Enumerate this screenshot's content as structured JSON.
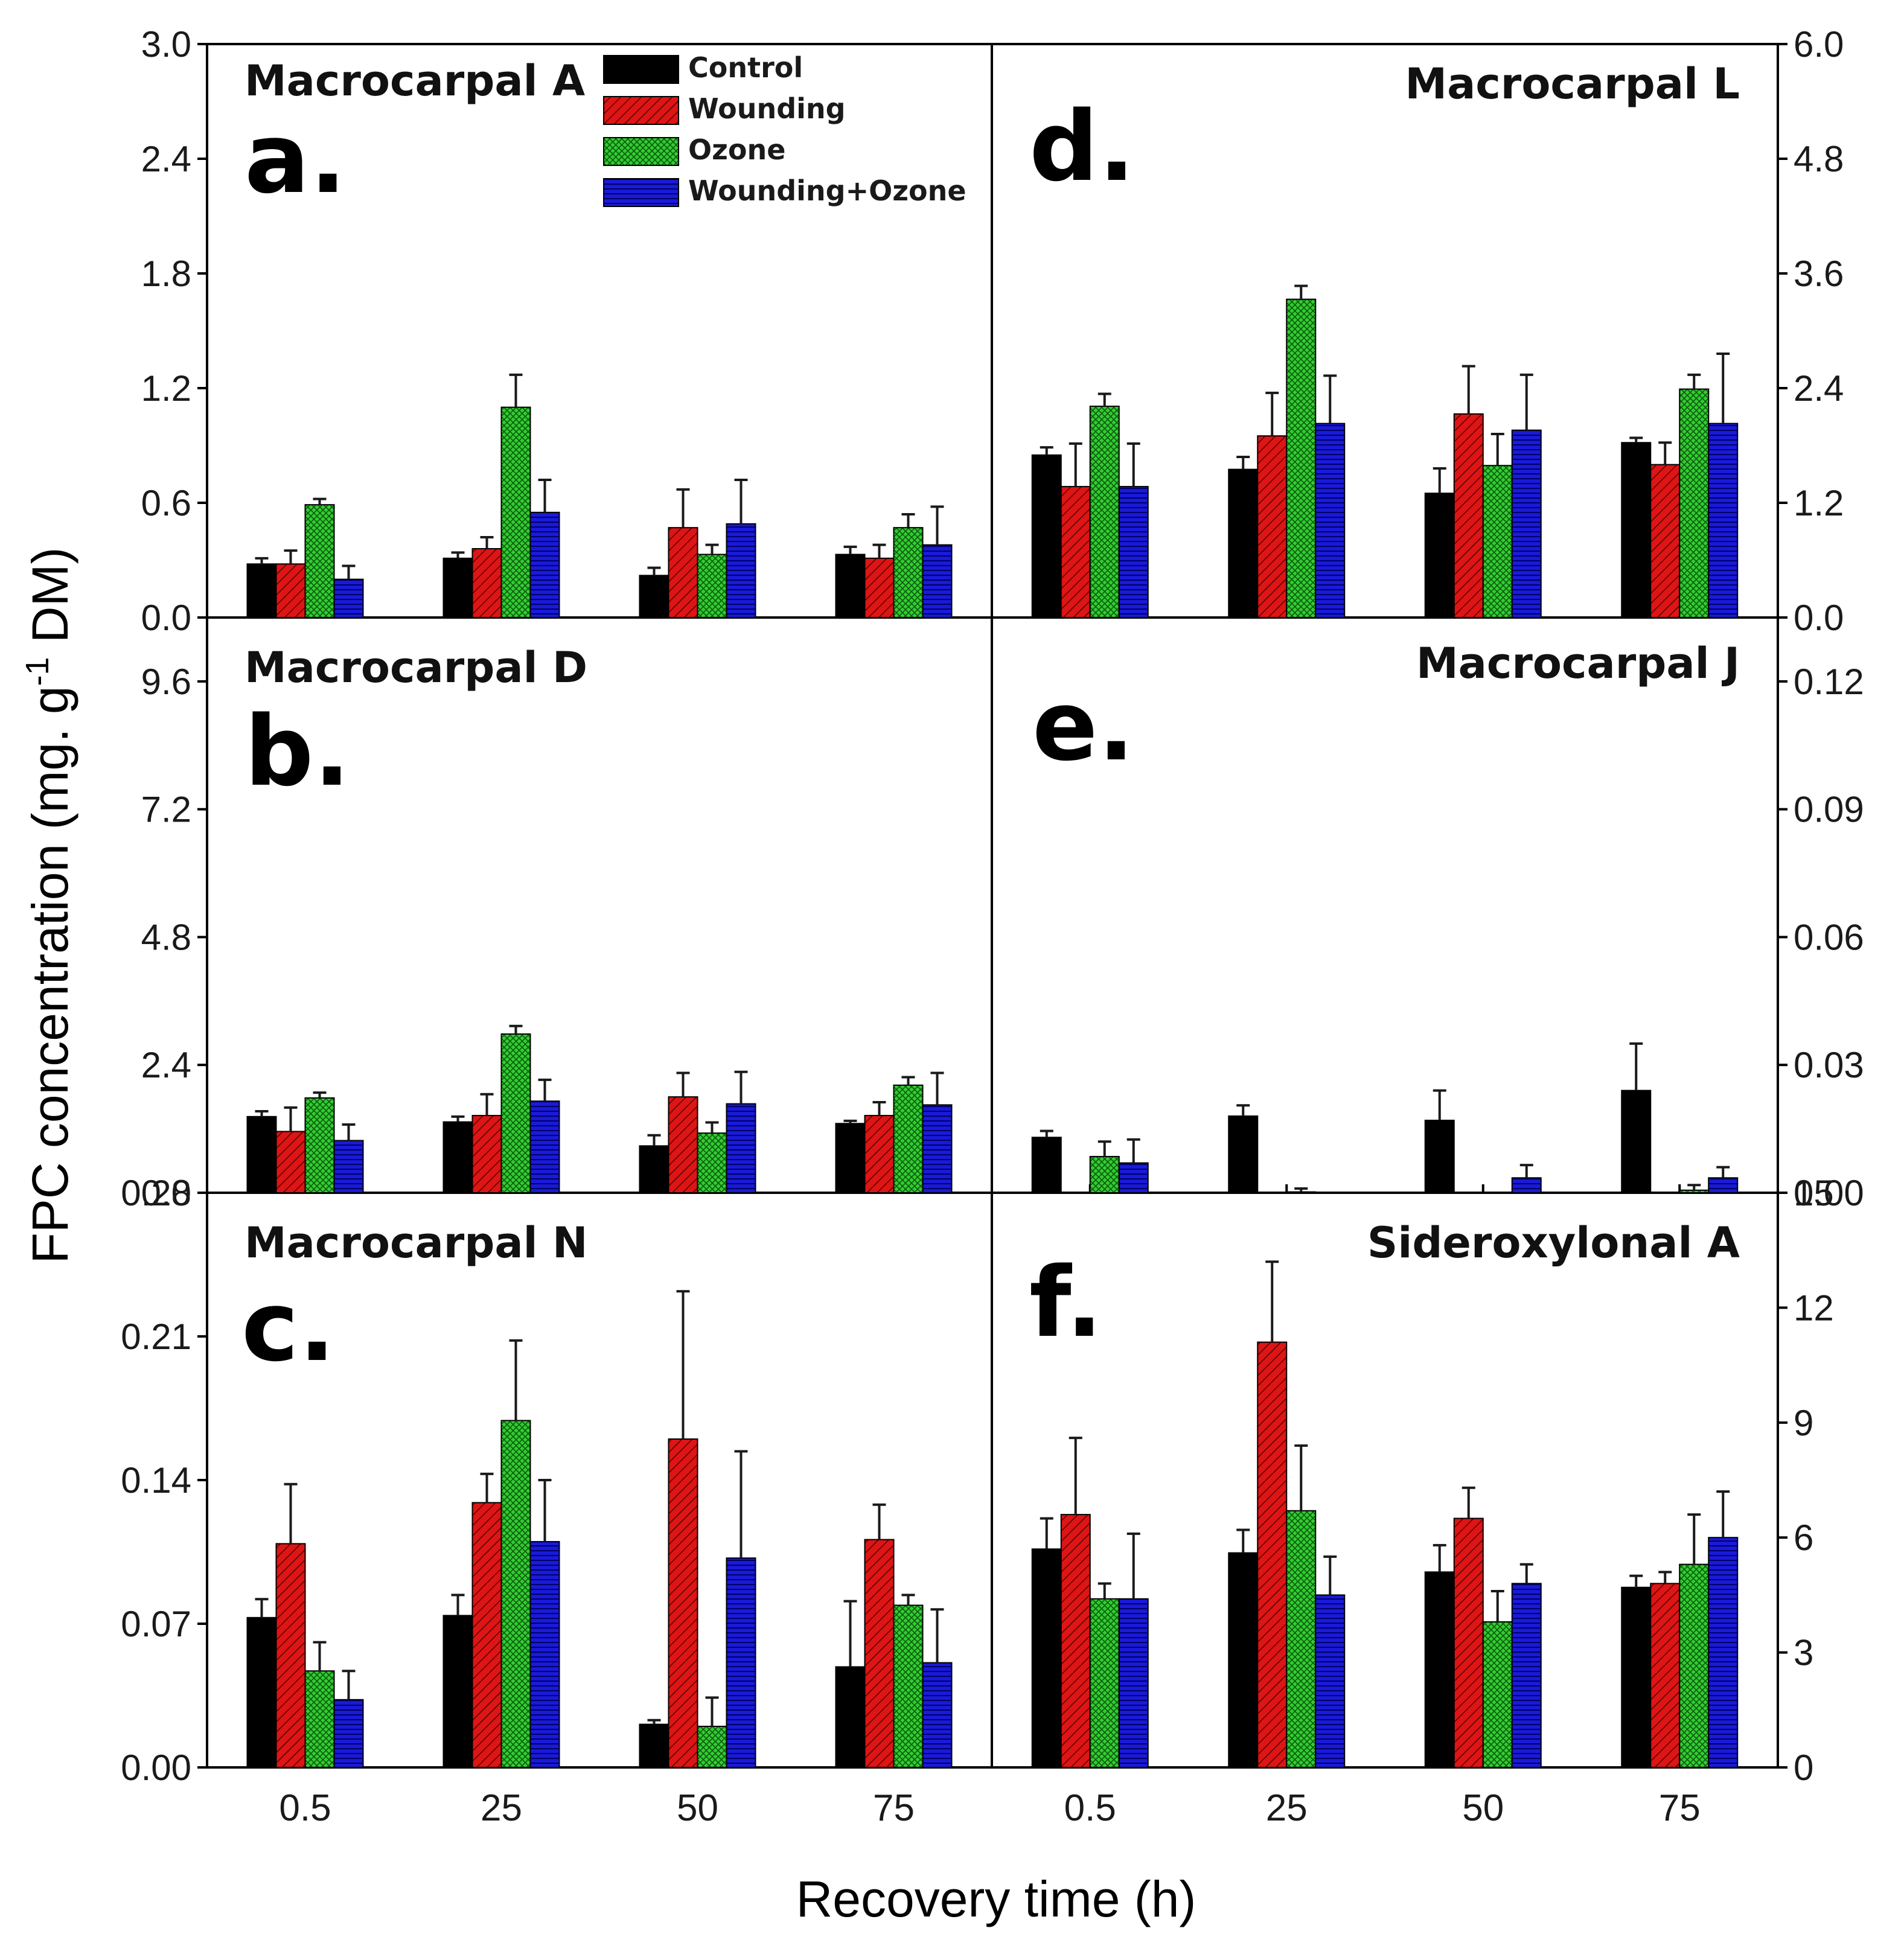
{
  "figure": {
    "ylabel": "FPC concentration (mg. g",
    "ylabel_sup": "-1",
    "ylabel_end": " DM)",
    "xlabel": "Recovery time (h)"
  },
  "colors": {
    "Control": "#000000",
    "Wounding": "#dd1515",
    "Ozone": "#33cc33",
    "Wounding+Ozone": "#1a1ad9"
  },
  "chart_data": [
    {
      "type": "bar",
      "panel": "a.",
      "title": "Macrocarpal A",
      "categories": [
        "0.5",
        "25",
        "50",
        "75"
      ],
      "ylim": [
        0,
        3.0
      ],
      "yticks": [
        "0.0",
        "0.6",
        "1.2",
        "1.8",
        "2.4",
        "3.0"
      ],
      "series": [
        {
          "name": "Control",
          "values": [
            0.28,
            0.31,
            0.22,
            0.33
          ],
          "errors": [
            0.03,
            0.03,
            0.04,
            0.04
          ]
        },
        {
          "name": "Wounding",
          "values": [
            0.28,
            0.36,
            0.47,
            0.31
          ],
          "errors": [
            0.07,
            0.06,
            0.2,
            0.07
          ]
        },
        {
          "name": "Ozone",
          "values": [
            0.59,
            1.1,
            0.33,
            0.47
          ],
          "errors": [
            0.03,
            0.17,
            0.05,
            0.07
          ]
        },
        {
          "name": "Wounding+Ozone",
          "values": [
            0.2,
            0.55,
            0.49,
            0.38
          ],
          "errors": [
            0.07,
            0.17,
            0.23,
            0.2
          ]
        }
      ]
    },
    {
      "type": "bar",
      "panel": "b.",
      "title": "Macrocarpal D",
      "categories": [
        "0.5",
        "25",
        "50",
        "75"
      ],
      "ylim": [
        0,
        10.8
      ],
      "yticks": [
        "0.0",
        "2.4",
        "4.8",
        "7.2",
        "9.6"
      ],
      "series": [
        {
          "name": "Control",
          "values": [
            1.43,
            1.33,
            0.88,
            1.3
          ],
          "errors": [
            0.1,
            0.1,
            0.2,
            0.05
          ]
        },
        {
          "name": "Wounding",
          "values": [
            1.15,
            1.45,
            1.8,
            1.45
          ],
          "errors": [
            0.45,
            0.4,
            0.45,
            0.25
          ]
        },
        {
          "name": "Ozone",
          "values": [
            1.78,
            2.98,
            1.12,
            2.02
          ],
          "errors": [
            0.1,
            0.15,
            0.2,
            0.15
          ]
        },
        {
          "name": "Wounding+Ozone",
          "values": [
            0.98,
            1.72,
            1.67,
            1.65
          ],
          "errors": [
            0.3,
            0.4,
            0.6,
            0.6
          ]
        }
      ]
    },
    {
      "type": "bar",
      "panel": "c.",
      "title": "Macrocarpal N",
      "categories": [
        "0.5",
        "25",
        "50",
        "75"
      ],
      "ylim": [
        0,
        0.28
      ],
      "yticks": [
        "0.00",
        "0.07",
        "0.14",
        "0.21",
        "0.28"
      ],
      "series": [
        {
          "name": "Control",
          "values": [
            0.073,
            0.074,
            0.021,
            0.049
          ],
          "errors": [
            0.009,
            0.01,
            0.002,
            0.032
          ]
        },
        {
          "name": "Wounding",
          "values": [
            0.109,
            0.129,
            0.16,
            0.111
          ],
          "errors": [
            0.029,
            0.014,
            0.072,
            0.017
          ]
        },
        {
          "name": "Ozone",
          "values": [
            0.047,
            0.169,
            0.02,
            0.079
          ],
          "errors": [
            0.014,
            0.039,
            0.014,
            0.005
          ]
        },
        {
          "name": "Wounding+Ozone",
          "values": [
            0.033,
            0.11,
            0.102,
            0.051
          ],
          "errors": [
            0.014,
            0.03,
            0.052,
            0.026
          ]
        }
      ]
    },
    {
      "type": "bar",
      "panel": "d.",
      "title": "Macrocarpal L",
      "categories": [
        "0.5",
        "25",
        "50",
        "75"
      ],
      "ylim": [
        0,
        6.0
      ],
      "yticks": [
        "0.0",
        "1.2",
        "2.4",
        "3.6",
        "4.8",
        "6.0"
      ],
      "series": [
        {
          "name": "Control",
          "values": [
            1.7,
            1.55,
            1.3,
            1.83
          ],
          "errors": [
            0.08,
            0.13,
            0.26,
            0.05
          ]
        },
        {
          "name": "Wounding",
          "values": [
            1.37,
            1.9,
            2.13,
            1.6
          ],
          "errors": [
            0.45,
            0.45,
            0.5,
            0.23
          ]
        },
        {
          "name": "Ozone",
          "values": [
            2.21,
            3.33,
            1.59,
            2.39
          ],
          "errors": [
            0.13,
            0.14,
            0.33,
            0.15
          ]
        },
        {
          "name": "Wounding+Ozone",
          "values": [
            1.37,
            2.03,
            1.96,
            2.03
          ],
          "errors": [
            0.45,
            0.5,
            0.58,
            0.73
          ]
        }
      ]
    },
    {
      "type": "bar",
      "panel": "e.",
      "title": "Macrocarpal J",
      "categories": [
        "0.5",
        "25",
        "50",
        "75"
      ],
      "ylim": [
        0,
        0.135
      ],
      "yticks": [
        "0.00",
        "0.03",
        "0.06",
        "0.09",
        "0.12"
      ],
      "series": [
        {
          "name": "Control",
          "values": [
            0.013,
            0.018,
            0.017,
            0.024
          ],
          "errors": [
            0.0015,
            0.0025,
            0.007,
            0.011
          ]
        },
        {
          "name": "Wounding",
          "values": [
            0.0,
            0.0,
            0.0,
            0.0
          ],
          "errors": [
            0,
            0,
            0,
            0
          ]
        },
        {
          "name": "Ozone",
          "values": [
            0.0085,
            0.0002,
            0.0,
            0.0006
          ],
          "errors": [
            0.0035,
            0.0008,
            0,
            0.0012
          ]
        },
        {
          "name": "Wounding+Ozone",
          "values": [
            0.007,
            0.0,
            0.0035,
            0.0035
          ],
          "errors": [
            0.0055,
            0,
            0.003,
            0.0025
          ]
        }
      ]
    },
    {
      "type": "bar",
      "panel": "f.",
      "title": "Sideroxylonal A",
      "categories": [
        "0.5",
        "25",
        "50",
        "75"
      ],
      "ylim": [
        0,
        15
      ],
      "yticks": [
        "0",
        "3",
        "6",
        "9",
        "12",
        "15"
      ],
      "series": [
        {
          "name": "Control",
          "values": [
            5.7,
            5.6,
            5.1,
            4.7
          ],
          "errors": [
            0.8,
            0.6,
            0.7,
            0.3
          ]
        },
        {
          "name": "Wounding",
          "values": [
            6.6,
            11.1,
            6.5,
            4.8
          ],
          "errors": [
            2.0,
            2.1,
            0.8,
            0.3
          ]
        },
        {
          "name": "Ozone",
          "values": [
            4.4,
            6.7,
            3.8,
            5.3
          ],
          "errors": [
            0.4,
            1.7,
            0.8,
            1.3
          ]
        },
        {
          "name": "Wounding+Ozone",
          "values": [
            4.4,
            4.5,
            4.8,
            6.0
          ],
          "errors": [
            1.7,
            1.0,
            0.5,
            1.2
          ]
        }
      ]
    }
  ]
}
